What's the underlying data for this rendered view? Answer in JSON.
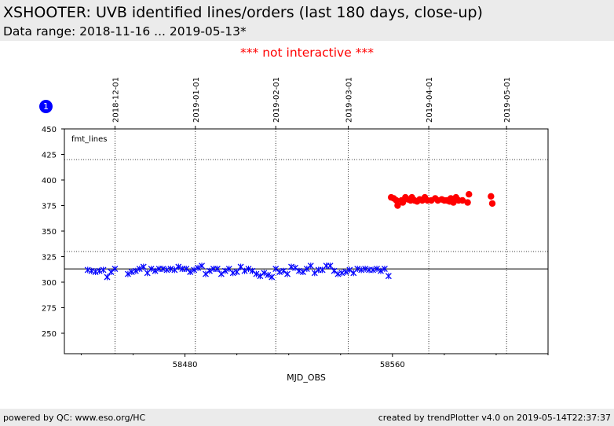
{
  "header": {
    "title": "XSHOOTER: UVB identified lines/orders (last 180 days, close-up)",
    "subtitle": "Data range: 2018-11-16 ... 2019-05-13*",
    "notice": "*** not interactive ***"
  },
  "badge": "1",
  "footer": {
    "left": "powered by QC: www.eso.org/HC",
    "right": "created by trendPlotter v4.0 on 2019-05-14T22:37:37"
  },
  "colors": {
    "series_blue": "#0000ff",
    "series_red": "#ff0000",
    "notice": "#ff0000",
    "band": "#ebebeb"
  },
  "chart_data": {
    "type": "scatter",
    "title": "",
    "xlabel": "MJD_OBS",
    "ylabel": "",
    "panel_label": "fmt_lines",
    "xlim": [
      58433.5,
      58620
    ],
    "ylim": [
      230,
      450
    ],
    "x_ticks": [
      58480,
      58560
    ],
    "y_ticks": [
      250,
      275,
      300,
      325,
      350,
      375,
      400,
      425,
      450
    ],
    "top_ticks": [
      {
        "mjd": 58453,
        "label": "2018-12-01"
      },
      {
        "mjd": 58484,
        "label": "2019-01-01"
      },
      {
        "mjd": 58515,
        "label": "2019-02-01"
      },
      {
        "mjd": 58543,
        "label": "2019-03-01"
      },
      {
        "mjd": 58574,
        "label": "2019-04-01"
      },
      {
        "mjd": 58604,
        "label": "2019-05-01"
      }
    ],
    "reference_lines": {
      "solid": 313,
      "dotted": [
        330,
        420
      ]
    },
    "grid": true,
    "series": [
      {
        "marker": "x",
        "color": "#0000ff",
        "points": [
          [
            58442.5,
            312
          ],
          [
            58444,
            311
          ],
          [
            58445.5,
            310
          ],
          [
            58447,
            311
          ],
          [
            58448.5,
            312
          ],
          [
            58450,
            305
          ],
          [
            58451.5,
            310
          ],
          [
            58453,
            313
          ],
          [
            58458,
            308
          ],
          [
            58459.5,
            310
          ],
          [
            58461,
            311
          ],
          [
            58462.5,
            313
          ],
          [
            58464,
            315
          ],
          [
            58465.5,
            309
          ],
          [
            58467,
            313
          ],
          [
            58468.5,
            311
          ],
          [
            58470,
            313
          ],
          [
            58471.5,
            313
          ],
          [
            58473,
            312
          ],
          [
            58474.5,
            313
          ],
          [
            58476,
            312
          ],
          [
            58477.5,
            315
          ],
          [
            58479,
            313
          ],
          [
            58480.5,
            313
          ],
          [
            58482,
            310
          ],
          [
            58483.5,
            312
          ],
          [
            58485,
            314
          ],
          [
            58486.5,
            316
          ],
          [
            58488,
            308
          ],
          [
            58489.5,
            311
          ],
          [
            58491,
            313
          ],
          [
            58492.5,
            313
          ],
          [
            58494,
            308
          ],
          [
            58495.5,
            311
          ],
          [
            58497,
            313
          ],
          [
            58498.5,
            309
          ],
          [
            58500,
            310
          ],
          [
            58501.5,
            315
          ],
          [
            58503,
            311
          ],
          [
            58504.5,
            313
          ],
          [
            58506,
            311
          ],
          [
            58507.5,
            308
          ],
          [
            58509,
            306
          ],
          [
            58510.5,
            309
          ],
          [
            58512,
            307
          ],
          [
            58513.5,
            305
          ],
          [
            58515,
            313
          ],
          [
            58516.5,
            310
          ],
          [
            58518,
            311
          ],
          [
            58519.5,
            308
          ],
          [
            58521,
            315
          ],
          [
            58522.5,
            314
          ],
          [
            58524,
            311
          ],
          [
            58525.5,
            310
          ],
          [
            58527,
            313
          ],
          [
            58528.5,
            316
          ],
          [
            58530,
            309
          ],
          [
            58531.5,
            312
          ],
          [
            58533,
            312
          ],
          [
            58534.5,
            316
          ],
          [
            58536,
            316
          ],
          [
            58537.5,
            311
          ],
          [
            58539,
            308
          ],
          [
            58540.5,
            309
          ],
          [
            58542,
            310
          ],
          [
            58543.5,
            312
          ],
          [
            58545,
            309
          ],
          [
            58546.5,
            313
          ],
          [
            58548,
            312
          ],
          [
            58549.5,
            313
          ],
          [
            58551,
            312
          ],
          [
            58552.5,
            312
          ],
          [
            58554,
            313
          ],
          [
            58555.5,
            311
          ],
          [
            58557,
            313
          ],
          [
            58558.5,
            306
          ]
        ]
      },
      {
        "marker": "o",
        "color": "#ff0000",
        "points": [
          [
            58559.5,
            383
          ],
          [
            58560.5,
            382
          ],
          [
            58561.5,
            380
          ],
          [
            58562,
            375
          ],
          [
            58563.5,
            380
          ],
          [
            58564,
            378
          ],
          [
            58565,
            383
          ],
          [
            58566,
            381
          ],
          [
            58567,
            380
          ],
          [
            58567.5,
            383
          ],
          [
            58568.5,
            380
          ],
          [
            58569.5,
            379
          ],
          [
            58570.5,
            381
          ],
          [
            58571.5,
            380
          ],
          [
            58572.5,
            383
          ],
          [
            58573.5,
            380
          ],
          [
            58575,
            380
          ],
          [
            58576.5,
            382
          ],
          [
            58577.5,
            380
          ],
          [
            58579,
            381
          ],
          [
            58580,
            380
          ],
          [
            58581,
            380
          ],
          [
            58582,
            379
          ],
          [
            58582.5,
            382
          ],
          [
            58583.5,
            378
          ],
          [
            58584.5,
            383
          ],
          [
            58585.5,
            380
          ],
          [
            58587,
            380
          ],
          [
            58589,
            378
          ],
          [
            58589.5,
            386
          ],
          [
            58598,
            384
          ],
          [
            58598.5,
            377
          ]
        ]
      }
    ]
  }
}
